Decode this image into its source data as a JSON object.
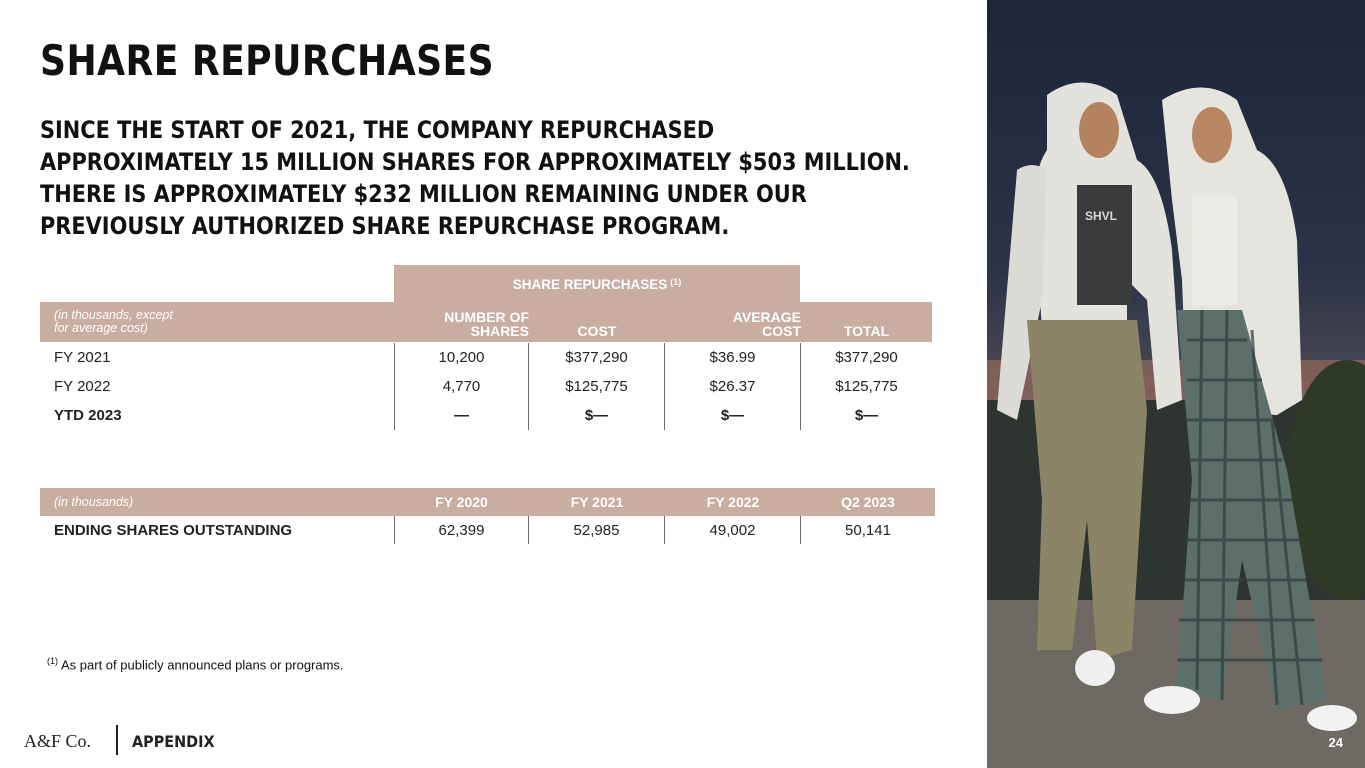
{
  "title": "SHARE REPURCHASES",
  "subtitle_lines": [
    "SINCE THE START OF 2021, THE COMPANY REPURCHASED",
    "APPROXIMATELY 15 MILLION SHARES FOR APPROXIMATELY $503 MILLION.",
    "THERE IS APPROXIMATELY $232 MILLION REMAINING UNDER OUR",
    "PREVIOUSLY AUTHORIZED SHARE REPURCHASE PROGRAM."
  ],
  "repurchase_table": {
    "group_header": "SHARE REPURCHASES",
    "group_header_note": "(1)",
    "label_header_line1": "(in thousands, except",
    "label_header_line2": "for average cost)",
    "col1_line1": "NUMBER OF",
    "col1_line2": "SHARES",
    "col2": "COST",
    "col3_line1": "AVERAGE",
    "col3_line2": "COST",
    "col4": "TOTAL",
    "rows": [
      {
        "label": "FY 2021",
        "shares": "10,200",
        "cost": "$377,290",
        "avg": "$36.99",
        "total": "$377,290"
      },
      {
        "label": "FY 2022",
        "shares": "4,770",
        "cost": "$125,775",
        "avg": "$26.37",
        "total": "$125,775"
      },
      {
        "label": "YTD 2023",
        "shares": "—",
        "cost": "$—",
        "avg": "$—",
        "total": "$—"
      }
    ]
  },
  "outstanding_table": {
    "label_header": "(in thousands)",
    "col1": "FY 2020",
    "col2": "FY 2021",
    "col3": "FY 2022",
    "col4": "Q2 2023",
    "row_label": "ENDING SHARES OUTSTANDING",
    "v1": "62,399",
    "v2": "52,985",
    "v3": "49,002",
    "v4": "50,141"
  },
  "footnote_mark": "(1)",
  "footnote_text": "As part of publicly announced plans or programs.",
  "logo_text": "A&F Co.",
  "section_label": "APPENDIX",
  "page_number": "24",
  "shirt_text": "SHVL",
  "colors": {
    "header_bg": "#c9ada0",
    "text": "#111111"
  }
}
